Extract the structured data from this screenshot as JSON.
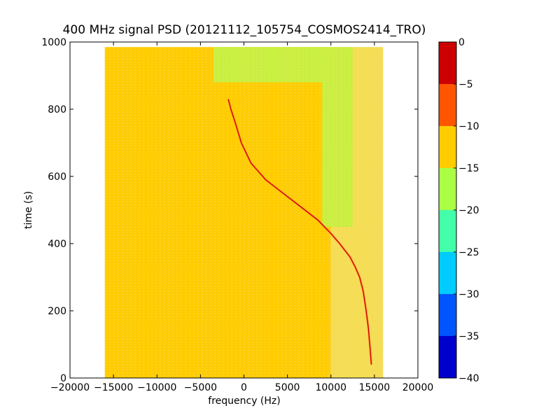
{
  "chart_data": {
    "type": "heatmap",
    "title": "400 MHz signal PSD (20121112_105754_COSMOS2414_TRO)",
    "xlabel": "frequency (Hz)",
    "ylabel": "time (s)",
    "xlim": [
      -20000,
      20000
    ],
    "ylim": [
      0,
      1000
    ],
    "x_ticks": [
      -20000,
      -15000,
      -10000,
      -5000,
      0,
      5000,
      10000,
      15000,
      20000
    ],
    "x_tick_labels": [
      "−20000",
      "−15000",
      "−10000",
      "−5000",
      "0",
      "5000",
      "10000",
      "15000",
      "20000"
    ],
    "y_ticks": [
      0,
      200,
      400,
      600,
      800,
      1000
    ],
    "y_tick_labels": [
      "0",
      "200",
      "400",
      "600",
      "800",
      "1000"
    ],
    "data_extent": {
      "x": [
        -16000,
        16000
      ],
      "y": [
        0,
        985
      ]
    },
    "colorbar": {
      "levels": [
        0,
        -5,
        -10,
        -15,
        -20,
        -25,
        -30,
        -35,
        -40
      ],
      "level_labels": [
        "0",
        "−5",
        "−10",
        "−15",
        "−20",
        "−25",
        "−30",
        "−35",
        "−40"
      ],
      "bands": [
        {
          "range": [
            -5,
            0
          ],
          "color": "#cc0000"
        },
        {
          "range": [
            -10,
            -5
          ],
          "color": "#ff5500"
        },
        {
          "range": [
            -15,
            -10
          ],
          "color": "#ffcc00"
        },
        {
          "range": [
            -20,
            -15
          ],
          "color": "#aaff44"
        },
        {
          "range": [
            -25,
            -20
          ],
          "color": "#44ffaa"
        },
        {
          "range": [
            -30,
            -25
          ],
          "color": "#00ccff"
        },
        {
          "range": [
            -35,
            -30
          ],
          "color": "#0055ff"
        },
        {
          "range": [
            -40,
            -35
          ],
          "color": "#0000cc"
        }
      ]
    },
    "background_regions": [
      {
        "x": [
          -16000,
          10000
        ],
        "y": [
          0,
          985
        ],
        "level_band": "-15 to -10",
        "color": "#ffcc00"
      },
      {
        "x": [
          10000,
          16000
        ],
        "y": [
          0,
          985
        ],
        "level_band": "-15 to -10 (weaker)",
        "color": "#f5dd55"
      },
      {
        "x": [
          -3500,
          9500
        ],
        "y": [
          880,
          985
        ],
        "level_band": "-20 to -15",
        "color": "#c8f040"
      },
      {
        "x": [
          9000,
          12500
        ],
        "y": [
          450,
          985
        ],
        "level_band": "-20 to -15",
        "color": "#c8f040"
      }
    ],
    "series": [
      {
        "name": "",
        "level_band": "-5 to 0",
        "x": [
          -1800,
          -1500,
          -1000,
          -300,
          800,
          2500,
          4500,
          6500,
          8500,
          10000,
          11000,
          11600,
          12200,
          12800,
          13300,
          13700,
          14000,
          14300,
          14500,
          14650
        ],
        "y": [
          830,
          800,
          760,
          700,
          640,
          590,
          550,
          510,
          470,
          430,
          400,
          380,
          360,
          330,
          300,
          260,
          210,
          150,
          90,
          40
        ]
      }
    ]
  }
}
